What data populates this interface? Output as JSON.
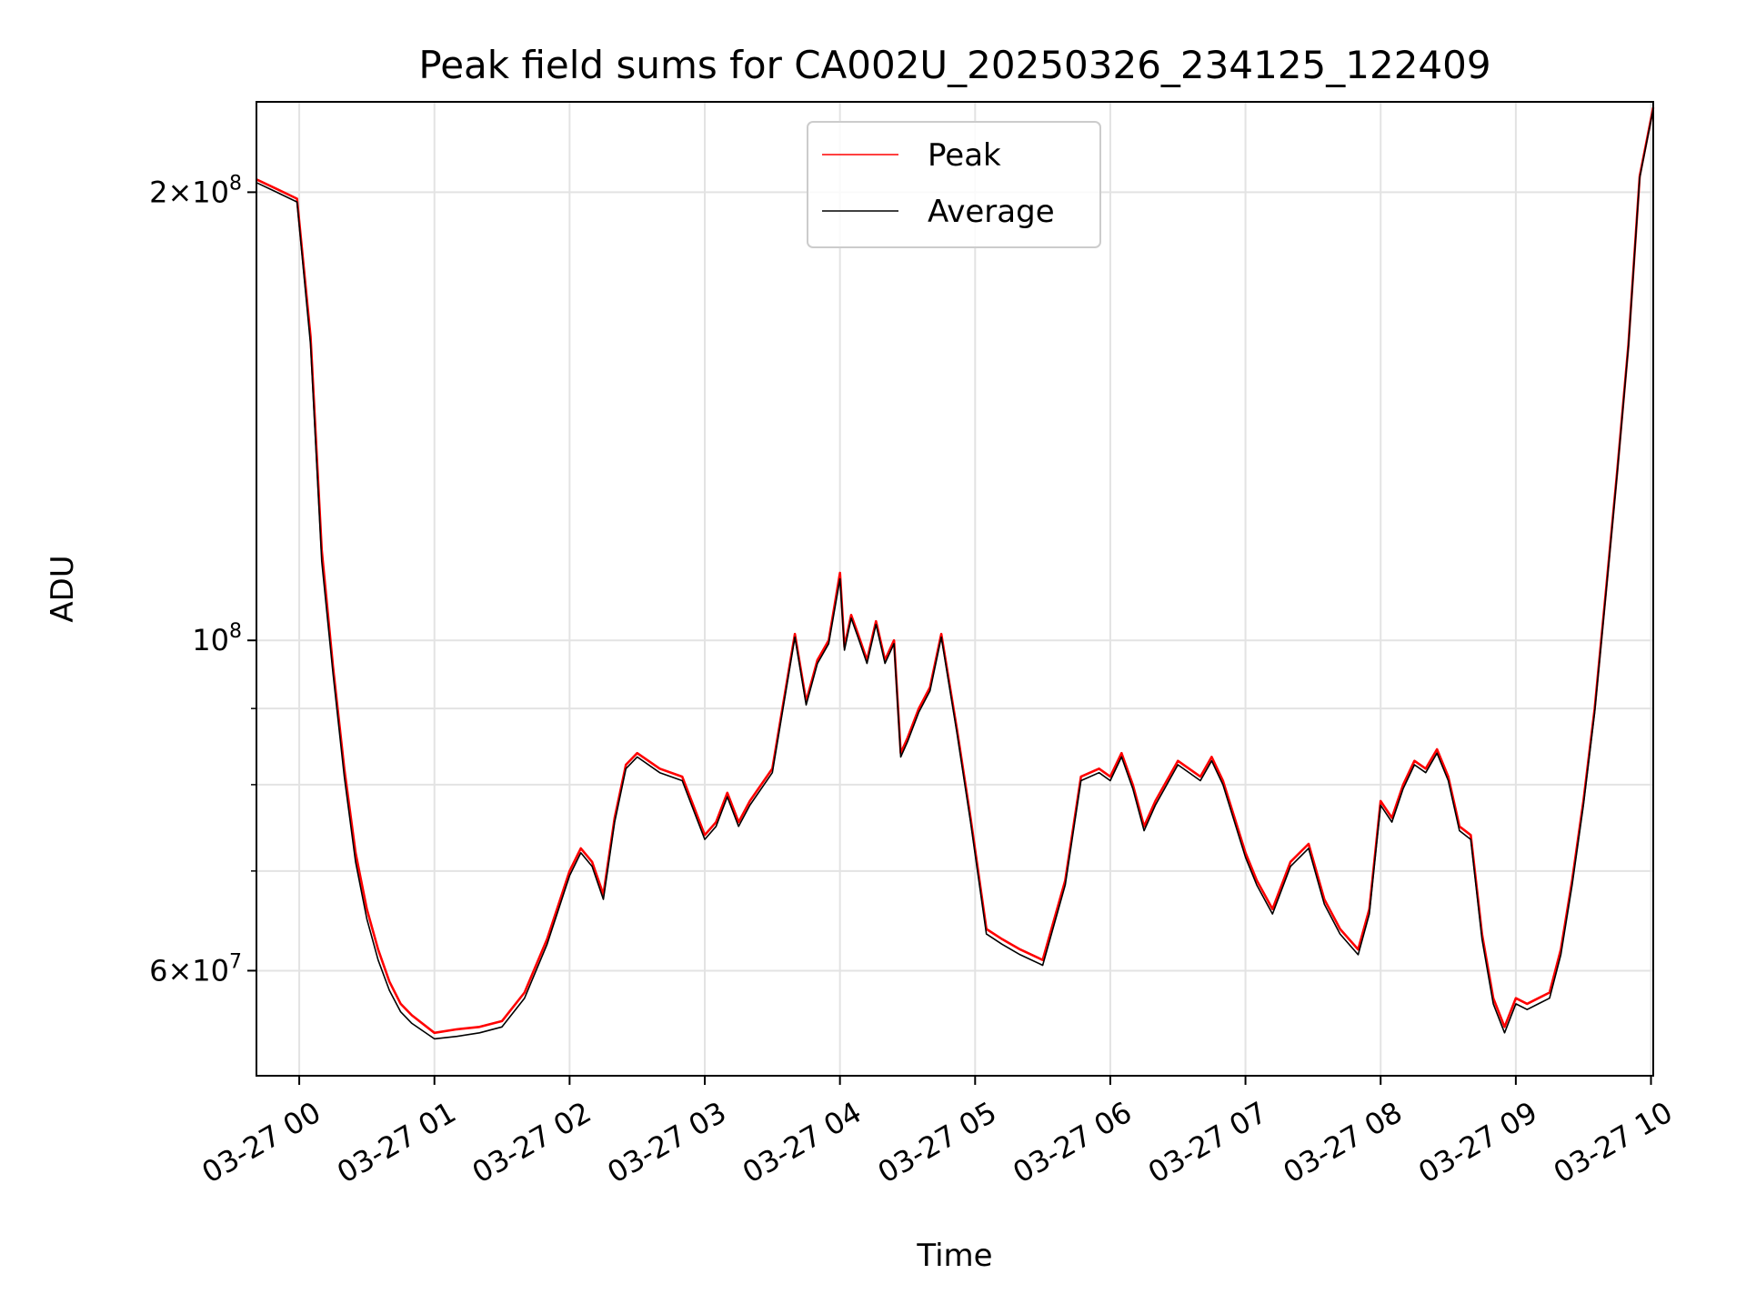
{
  "chart_data": {
    "type": "line",
    "title": "Peak field sums for CA002U_20250326_234125_122409",
    "xlabel": "Time",
    "ylabel": "ADU",
    "y_scale": "log",
    "ylim": [
      51000000,
      230000000
    ],
    "xlim": [
      "2025-03-26 23:41",
      "2025-03-27 10:01"
    ],
    "grid": true,
    "legend": {
      "placement": "top-center"
    },
    "x_ticks": [
      {
        "x": "2025-03-27 00:00",
        "label": "03-27 00"
      },
      {
        "x": "2025-03-27 01:00",
        "label": "03-27 01"
      },
      {
        "x": "2025-03-27 02:00",
        "label": "03-27 02"
      },
      {
        "x": "2025-03-27 03:00",
        "label": "03-27 03"
      },
      {
        "x": "2025-03-27 04:00",
        "label": "03-27 04"
      },
      {
        "x": "2025-03-27 05:00",
        "label": "03-27 05"
      },
      {
        "x": "2025-03-27 06:00",
        "label": "03-27 06"
      },
      {
        "x": "2025-03-27 07:00",
        "label": "03-27 07"
      },
      {
        "x": "2025-03-27 08:00",
        "label": "03-27 08"
      },
      {
        "x": "2025-03-27 09:00",
        "label": "03-27 09"
      },
      {
        "x": "2025-03-27 10:00",
        "label": "03-27 10"
      }
    ],
    "y_major_ticks": [
      {
        "value": 60000000,
        "label_base": "6×10",
        "label_exp": "7"
      },
      {
        "value": 100000000,
        "label_base": "10",
        "label_exp": "8"
      },
      {
        "value": 200000000,
        "label_base": "2×10",
        "label_exp": "8"
      }
    ],
    "y_minor_ticks": [
      70000000,
      80000000,
      90000000
    ],
    "series": [
      {
        "name": "Peak",
        "color": "#ff0000",
        "x": [
          "2025-03-26 23:41",
          "2025-03-26 23:50",
          "2025-03-26 23:59",
          "2025-03-27 00:05",
          "2025-03-27 00:10",
          "2025-03-27 00:15",
          "2025-03-27 00:20",
          "2025-03-27 00:25",
          "2025-03-27 00:30",
          "2025-03-27 00:35",
          "2025-03-27 00:40",
          "2025-03-27 00:45",
          "2025-03-27 00:50",
          "2025-03-27 01:00",
          "2025-03-27 01:10",
          "2025-03-27 01:20",
          "2025-03-27 01:30",
          "2025-03-27 01:40",
          "2025-03-27 01:50",
          "2025-03-27 02:00",
          "2025-03-27 02:05",
          "2025-03-27 02:10",
          "2025-03-27 02:15",
          "2025-03-27 02:20",
          "2025-03-27 02:25",
          "2025-03-27 02:30",
          "2025-03-27 02:40",
          "2025-03-27 02:50",
          "2025-03-27 03:00",
          "2025-03-27 03:05",
          "2025-03-27 03:10",
          "2025-03-27 03:15",
          "2025-03-27 03:20",
          "2025-03-27 03:30",
          "2025-03-27 03:40",
          "2025-03-27 03:45",
          "2025-03-27 03:50",
          "2025-03-27 03:55",
          "2025-03-27 04:00",
          "2025-03-27 04:02",
          "2025-03-27 04:05",
          "2025-03-27 04:08",
          "2025-03-27 04:12",
          "2025-03-27 04:16",
          "2025-03-27 04:20",
          "2025-03-27 04:24",
          "2025-03-27 04:27",
          "2025-03-27 04:30",
          "2025-03-27 04:35",
          "2025-03-27 04:40",
          "2025-03-27 04:45",
          "2025-03-27 04:52",
          "2025-03-27 04:58",
          "2025-03-27 05:05",
          "2025-03-27 05:12",
          "2025-03-27 05:20",
          "2025-03-27 05:30",
          "2025-03-27 05:40",
          "2025-03-27 05:47",
          "2025-03-27 05:55",
          "2025-03-27 06:00",
          "2025-03-27 06:05",
          "2025-03-27 06:10",
          "2025-03-27 06:15",
          "2025-03-27 06:20",
          "2025-03-27 06:30",
          "2025-03-27 06:40",
          "2025-03-27 06:45",
          "2025-03-27 06:50",
          "2025-03-27 07:00",
          "2025-03-27 07:05",
          "2025-03-27 07:12",
          "2025-03-27 07:20",
          "2025-03-27 07:28",
          "2025-03-27 07:35",
          "2025-03-27 07:42",
          "2025-03-27 07:50",
          "2025-03-27 07:55",
          "2025-03-27 08:00",
          "2025-03-27 08:05",
          "2025-03-27 08:10",
          "2025-03-27 08:15",
          "2025-03-27 08:20",
          "2025-03-27 08:25",
          "2025-03-27 08:30",
          "2025-03-27 08:35",
          "2025-03-27 08:40",
          "2025-03-27 08:45",
          "2025-03-27 08:50",
          "2025-03-27 08:55",
          "2025-03-27 09:00",
          "2025-03-27 09:05",
          "2025-03-27 09:10",
          "2025-03-27 09:15",
          "2025-03-27 09:20",
          "2025-03-27 09:25",
          "2025-03-27 09:30",
          "2025-03-27 09:35",
          "2025-03-27 09:40",
          "2025-03-27 09:45",
          "2025-03-27 09:50",
          "2025-03-27 09:55",
          "2025-03-27 10:01"
        ],
        "values": [
          204000000,
          201000000,
          198000000,
          160000000,
          115000000,
          96000000,
          82000000,
          72000000,
          66000000,
          62000000,
          59000000,
          57000000,
          56000000,
          54500000,
          54800000,
          55000000,
          55500000,
          58000000,
          63000000,
          70000000,
          72500000,
          71000000,
          67500000,
          76000000,
          82500000,
          84000000,
          82000000,
          81000000,
          74000000,
          75500000,
          79000000,
          75500000,
          78000000,
          82000000,
          101000000,
          91000000,
          97000000,
          100000000,
          111000000,
          99000000,
          104000000,
          101000000,
          97000000,
          103000000,
          97000000,
          100000000,
          84000000,
          86000000,
          90000000,
          93000000,
          101000000,
          87000000,
          76000000,
          64000000,
          63000000,
          62000000,
          61000000,
          69000000,
          81000000,
          82000000,
          81000000,
          84000000,
          80000000,
          75000000,
          78000000,
          83000000,
          81000000,
          83500000,
          80500000,
          72000000,
          69000000,
          66000000,
          71000000,
          73000000,
          67000000,
          64000000,
          62000000,
          66000000,
          78000000,
          76000000,
          80000000,
          83000000,
          82000000,
          84500000,
          81000000,
          75000000,
          74000000,
          63500000,
          57500000,
          55000000,
          57500000,
          57000000,
          57500000,
          58000000,
          62000000,
          69000000,
          78000000,
          90000000,
          108000000,
          130000000,
          158000000,
          205000000,
          228000000
        ]
      },
      {
        "name": "Average",
        "color": "#000000",
        "x": [
          "2025-03-26 23:41",
          "2025-03-26 23:50",
          "2025-03-26 23:59",
          "2025-03-27 00:05",
          "2025-03-27 00:10",
          "2025-03-27 00:15",
          "2025-03-27 00:20",
          "2025-03-27 00:25",
          "2025-03-27 00:30",
          "2025-03-27 00:35",
          "2025-03-27 00:40",
          "2025-03-27 00:45",
          "2025-03-27 00:50",
          "2025-03-27 01:00",
          "2025-03-27 01:10",
          "2025-03-27 01:20",
          "2025-03-27 01:30",
          "2025-03-27 01:40",
          "2025-03-27 01:50",
          "2025-03-27 02:00",
          "2025-03-27 02:05",
          "2025-03-27 02:10",
          "2025-03-27 02:15",
          "2025-03-27 02:20",
          "2025-03-27 02:25",
          "2025-03-27 02:30",
          "2025-03-27 02:40",
          "2025-03-27 02:50",
          "2025-03-27 03:00",
          "2025-03-27 03:05",
          "2025-03-27 03:10",
          "2025-03-27 03:15",
          "2025-03-27 03:20",
          "2025-03-27 03:30",
          "2025-03-27 03:40",
          "2025-03-27 03:45",
          "2025-03-27 03:50",
          "2025-03-27 03:55",
          "2025-03-27 04:00",
          "2025-03-27 04:02",
          "2025-03-27 04:05",
          "2025-03-27 04:08",
          "2025-03-27 04:12",
          "2025-03-27 04:16",
          "2025-03-27 04:20",
          "2025-03-27 04:24",
          "2025-03-27 04:27",
          "2025-03-27 04:30",
          "2025-03-27 04:35",
          "2025-03-27 04:40",
          "2025-03-27 04:45",
          "2025-03-27 04:52",
          "2025-03-27 04:58",
          "2025-03-27 05:05",
          "2025-03-27 05:12",
          "2025-03-27 05:20",
          "2025-03-27 05:30",
          "2025-03-27 05:40",
          "2025-03-27 05:47",
          "2025-03-27 05:55",
          "2025-03-27 06:00",
          "2025-03-27 06:05",
          "2025-03-27 06:10",
          "2025-03-27 06:15",
          "2025-03-27 06:20",
          "2025-03-27 06:30",
          "2025-03-27 06:40",
          "2025-03-27 06:45",
          "2025-03-27 06:50",
          "2025-03-27 07:00",
          "2025-03-27 07:05",
          "2025-03-27 07:12",
          "2025-03-27 07:20",
          "2025-03-27 07:28",
          "2025-03-27 07:35",
          "2025-03-27 07:42",
          "2025-03-27 07:50",
          "2025-03-27 07:55",
          "2025-03-27 08:00",
          "2025-03-27 08:05",
          "2025-03-27 08:10",
          "2025-03-27 08:15",
          "2025-03-27 08:20",
          "2025-03-27 08:25",
          "2025-03-27 08:30",
          "2025-03-27 08:35",
          "2025-03-27 08:40",
          "2025-03-27 08:45",
          "2025-03-27 08:50",
          "2025-03-27 08:55",
          "2025-03-27 09:00",
          "2025-03-27 09:05",
          "2025-03-27 09:10",
          "2025-03-27 09:15",
          "2025-03-27 09:20",
          "2025-03-27 09:25",
          "2025-03-27 09:30",
          "2025-03-27 09:35",
          "2025-03-27 09:40",
          "2025-03-27 09:45",
          "2025-03-27 09:50",
          "2025-03-27 09:55",
          "2025-03-27 10:01"
        ],
        "values": [
          203000000,
          200000000,
          197000000,
          158000000,
          113000000,
          95000000,
          81000000,
          71000000,
          65000000,
          61000000,
          58200000,
          56300000,
          55300000,
          54000000,
          54200000,
          54500000,
          55000000,
          57500000,
          62500000,
          69500000,
          72000000,
          70500000,
          67000000,
          75500000,
          82000000,
          83500000,
          81500000,
          80500000,
          73500000,
          75000000,
          78500000,
          75000000,
          77500000,
          81500000,
          100500000,
          90500000,
          96500000,
          99500000,
          110000000,
          98500000,
          103500000,
          100500000,
          96500000,
          102500000,
          96500000,
          99500000,
          83500000,
          85500000,
          89500000,
          92500000,
          100500000,
          86500000,
          75500000,
          63500000,
          62500000,
          61500000,
          60500000,
          68500000,
          80500000,
          81500000,
          80500000,
          83500000,
          79500000,
          74500000,
          77500000,
          82500000,
          80500000,
          83000000,
          80000000,
          71500000,
          68500000,
          65500000,
          70500000,
          72500000,
          66500000,
          63500000,
          61500000,
          65500000,
          77500000,
          75500000,
          79500000,
          82500000,
          81500000,
          84000000,
          80500000,
          74500000,
          73500000,
          63000000,
          57000000,
          54500000,
          57000000,
          56500000,
          57000000,
          57500000,
          61500000,
          68500000,
          77500000,
          89500000,
          107500000,
          129500000,
          157500000,
          204500000,
          227500000
        ]
      }
    ]
  }
}
